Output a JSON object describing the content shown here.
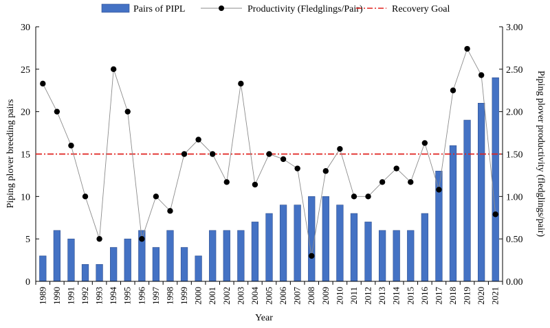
{
  "chart_data": {
    "type": "bar+line",
    "xlabel": "Year",
    "ylabel_left": "Piping plover breeding pairs",
    "ylabel_right": "Piping plover productivity (fledglings/pair)",
    "ylim_left": [
      0,
      30
    ],
    "yticks_left": [
      "0",
      "5",
      "10",
      "15",
      "20",
      "25",
      "30"
    ],
    "ylim_right": [
      0,
      3
    ],
    "yticks_right": [
      "0.00",
      "0.50",
      "1.00",
      "1.50",
      "2.00",
      "2.50",
      "3.00"
    ],
    "grid": false,
    "legend_position": "top",
    "categories": [
      "1989",
      "1990",
      "1991",
      "1992",
      "1993",
      "1994",
      "1995",
      "1996",
      "1997",
      "1998",
      "1999",
      "2000",
      "2001",
      "2002",
      "2003",
      "2004",
      "2005",
      "2006",
      "2007",
      "2008",
      "2009",
      "2010",
      "2011",
      "2012",
      "2013",
      "2014",
      "2015",
      "2016",
      "2017",
      "2018",
      "2019",
      "2020",
      "2021"
    ],
    "series": [
      {
        "name": "Pairs of PIPL",
        "type": "bar",
        "axis": "left",
        "color": "#4472c4",
        "values": [
          3,
          6,
          5,
          2,
          2,
          4,
          5,
          6,
          4,
          6,
          4,
          3,
          6,
          6,
          6,
          7,
          8,
          9,
          9,
          10,
          10,
          9,
          8,
          7,
          6,
          6,
          6,
          8,
          13,
          16,
          19,
          21,
          24
        ]
      },
      {
        "name": "Productivity (Fledglings/Pair)",
        "type": "line",
        "axis": "right",
        "color": "#000000",
        "values": [
          2.33,
          2.0,
          1.6,
          1.0,
          0.5,
          2.5,
          2.0,
          0.5,
          1.0,
          0.83,
          1.5,
          1.67,
          1.5,
          1.17,
          2.33,
          1.14,
          1.5,
          1.44,
          1.33,
          0.3,
          1.3,
          1.56,
          1.0,
          1.0,
          1.17,
          1.33,
          1.17,
          1.63,
          1.08,
          2.25,
          2.74,
          2.43,
          0.79
        ]
      },
      {
        "name": "Recovery Goal",
        "type": "reference-line",
        "axis": "right",
        "color": "#e0211d",
        "value": 1.5
      }
    ]
  }
}
